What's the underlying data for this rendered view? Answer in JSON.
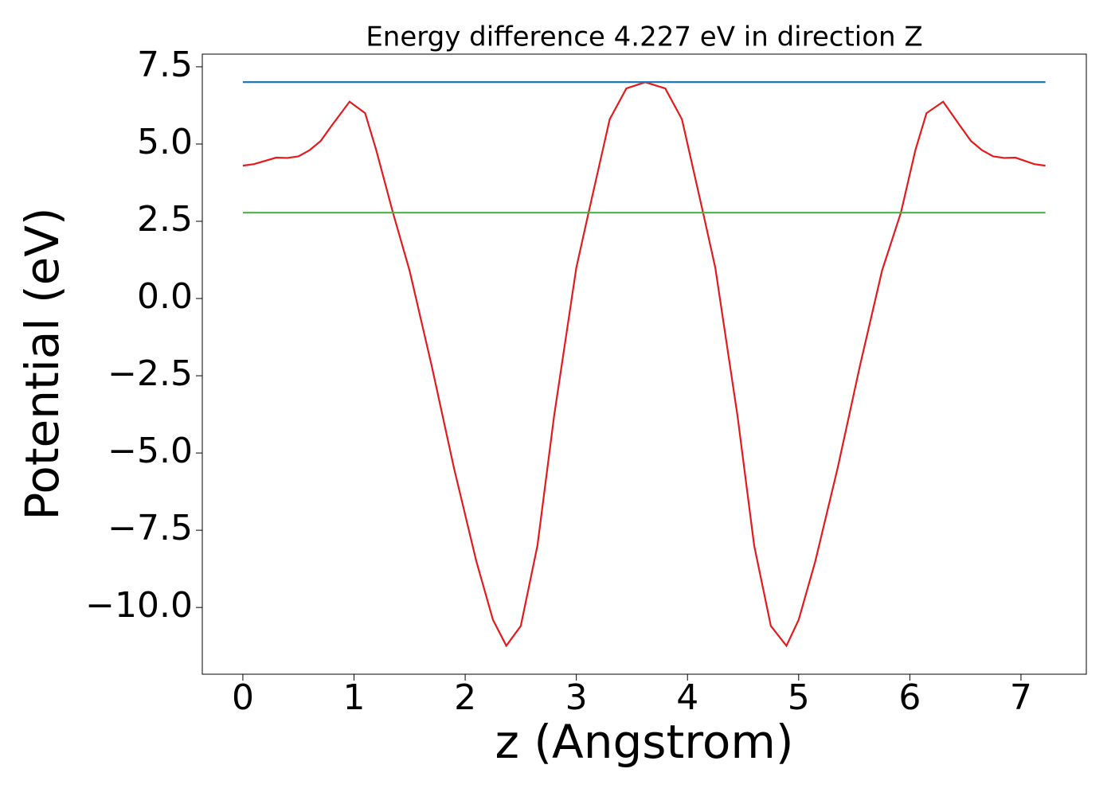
{
  "chart_data": {
    "type": "line",
    "title": "Energy difference 4.227 eV in direction Z",
    "xlabel": "z (Angstrom)",
    "ylabel": "Potential (eV)",
    "xlim": [
      -0.365,
      7.588
    ],
    "ylim": [
      -12.16,
      7.91
    ],
    "xticks": [
      0,
      1,
      2,
      3,
      4,
      5,
      6,
      7
    ],
    "yticks": [
      {
        "value": -10,
        "label": "−10.0"
      },
      {
        "value": -7.5,
        "label": "−7.5"
      },
      {
        "value": -5,
        "label": "−5.0"
      },
      {
        "value": -2.5,
        "label": "−2.5"
      },
      {
        "value": 0,
        "label": "0.0"
      },
      2.5,
      {
        "value": 5,
        "label": "5.0"
      },
      7.5
    ],
    "series": [
      {
        "color": "#e41a1c",
        "x": [
          0,
          0.1,
          0.3,
          0.4,
          0.5,
          0.6,
          0.7,
          0.8,
          0.96,
          1.1,
          1.2,
          1.35,
          1.5,
          1.7,
          1.9,
          2.1,
          2.25,
          2.37,
          2.5,
          2.65,
          2.8,
          3.0,
          3.11,
          3.3,
          3.45,
          3.62,
          3.8,
          3.95,
          4.14,
          4.25,
          4.45,
          4.6,
          4.75,
          4.89,
          5.0,
          5.15,
          5.35,
          5.55,
          5.75,
          5.92,
          6.05,
          6.15,
          6.3,
          6.45,
          6.55,
          6.65,
          6.75,
          6.85,
          6.95,
          7.12,
          7.22
        ],
        "values": [
          4.3,
          4.35,
          4.56,
          4.55,
          4.6,
          4.8,
          5.1,
          5.6,
          6.37,
          6.0,
          4.8,
          2.78,
          0.9,
          -2.2,
          -5.5,
          -8.5,
          -10.4,
          -11.24,
          -10.6,
          -8.0,
          -3.8,
          1.0,
          2.78,
          5.8,
          6.8,
          7.0,
          6.8,
          5.8,
          2.78,
          1.0,
          -3.8,
          -8.0,
          -10.6,
          -11.24,
          -10.4,
          -8.5,
          -5.5,
          -2.2,
          0.9,
          2.78,
          4.8,
          6.0,
          6.37,
          5.6,
          5.1,
          4.8,
          4.6,
          4.55,
          4.56,
          4.35,
          4.3
        ]
      },
      {
        "color": "#1f77b4",
        "x": [
          0,
          7.22
        ],
        "values": [
          7.005,
          7.005
        ]
      },
      {
        "color": "#4daf4a",
        "x": [
          0,
          7.22
        ],
        "values": [
          2.778,
          2.778
        ]
      }
    ]
  }
}
